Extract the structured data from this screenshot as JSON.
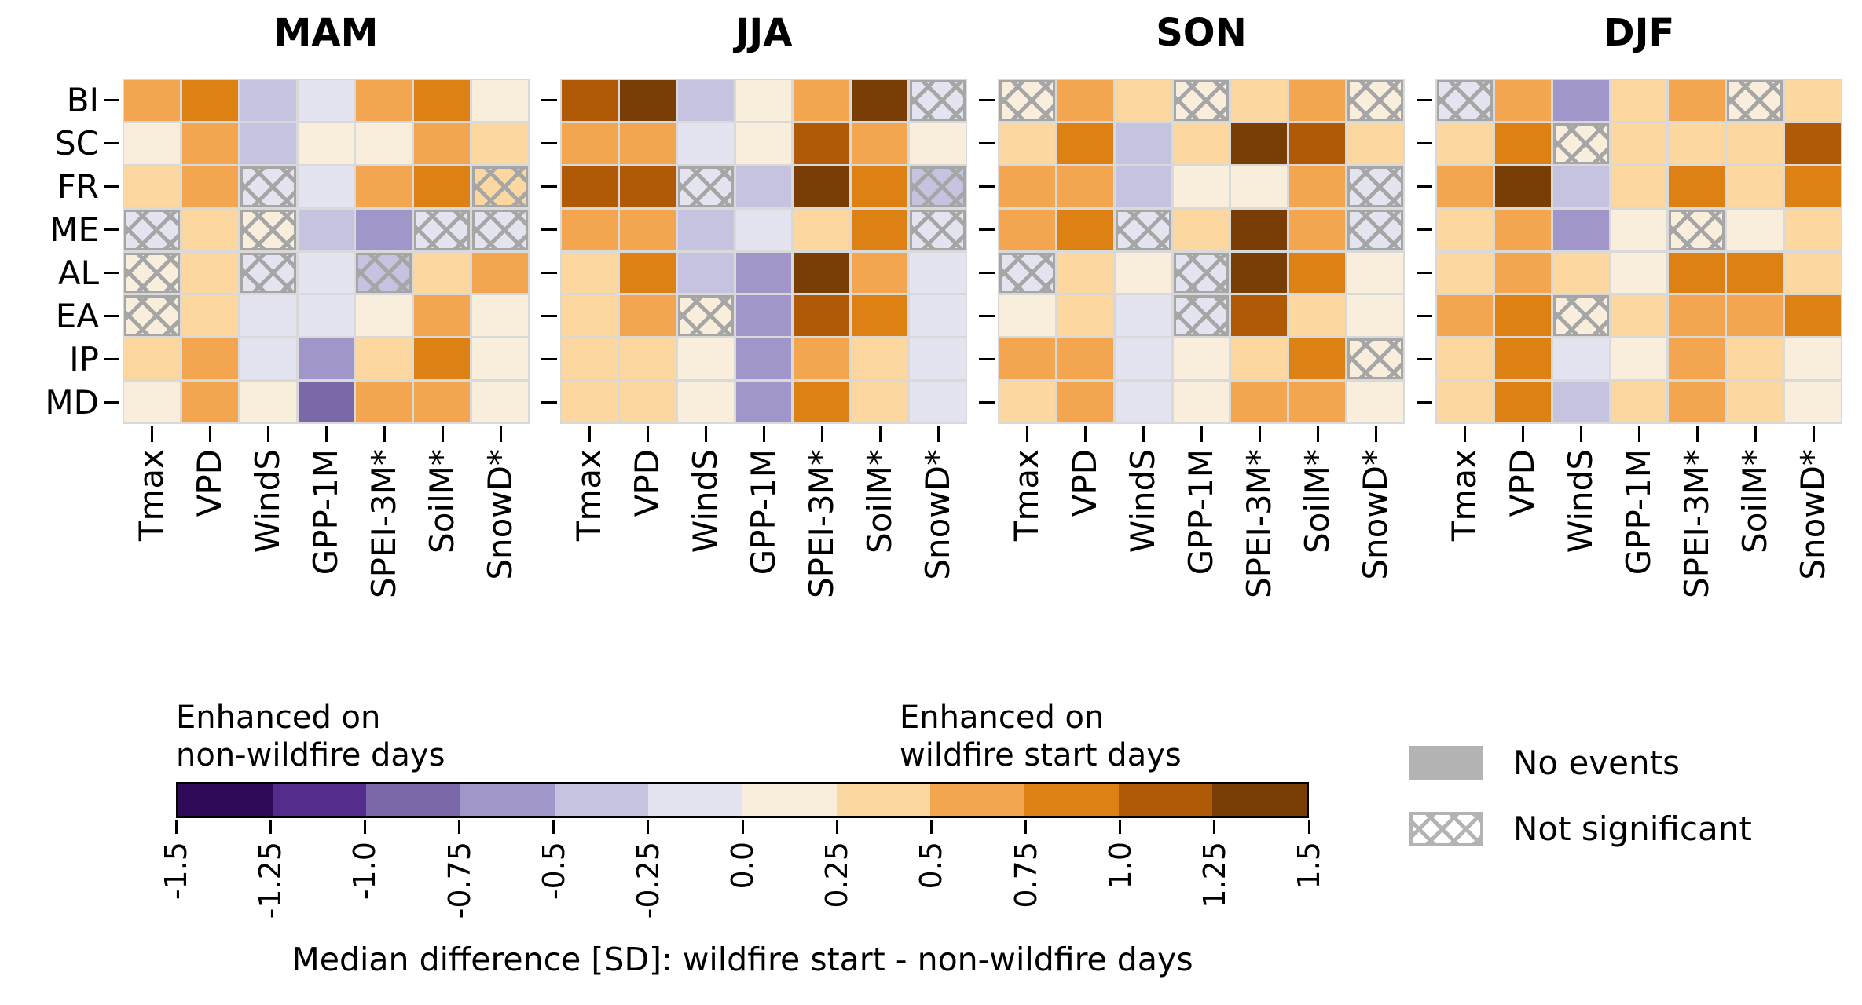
{
  "chart_data": {
    "type": "heatmap",
    "rows": [
      "BI",
      "SC",
      "FR",
      "ME",
      "AL",
      "EA",
      "IP",
      "MD"
    ],
    "columns": [
      "Tmax",
      "VPD",
      "WindS",
      "GPP-1M",
      "SPEI-3M*",
      "SoilM*",
      "SnowD*"
    ],
    "value_units": "SD (median difference, wildfire start minus non-wildfire days)",
    "panels": [
      {
        "title": "MAM",
        "values": [
          [
            0.625,
            0.875,
            -0.375,
            -0.125,
            0.625,
            0.875,
            0.125
          ],
          [
            0.125,
            0.625,
            -0.375,
            0.125,
            0.125,
            0.625,
            0.375
          ],
          [
            0.375,
            0.625,
            -0.125,
            -0.125,
            0.625,
            0.875,
            0.375
          ],
          [
            -0.125,
            0.375,
            0.125,
            -0.375,
            -0.625,
            -0.125,
            -0.125
          ],
          [
            0.125,
            0.375,
            -0.125,
            -0.125,
            -0.375,
            0.375,
            0.625
          ],
          [
            0.125,
            0.375,
            -0.125,
            -0.125,
            0.125,
            0.625,
            0.125
          ],
          [
            0.375,
            0.625,
            -0.125,
            -0.625,
            0.375,
            0.875,
            0.125
          ],
          [
            0.125,
            0.625,
            0.125,
            -0.875,
            0.625,
            0.625,
            0.125
          ]
        ],
        "not_significant": [
          [
            0,
            0,
            0,
            0,
            0,
            0,
            0
          ],
          [
            0,
            0,
            0,
            0,
            0,
            0,
            0
          ],
          [
            0,
            0,
            1,
            0,
            0,
            0,
            1
          ],
          [
            1,
            0,
            1,
            0,
            0,
            1,
            1
          ],
          [
            1,
            0,
            1,
            0,
            1,
            0,
            0
          ],
          [
            1,
            0,
            0,
            0,
            0,
            0,
            0
          ],
          [
            0,
            0,
            0,
            0,
            0,
            0,
            0
          ],
          [
            0,
            0,
            0,
            0,
            0,
            0,
            0
          ]
        ]
      },
      {
        "title": "JJA",
        "values": [
          [
            1.125,
            1.375,
            -0.375,
            0.125,
            0.625,
            1.375,
            -0.125
          ],
          [
            0.625,
            0.625,
            -0.125,
            0.125,
            1.125,
            0.625,
            0.125
          ],
          [
            1.125,
            1.125,
            -0.125,
            -0.375,
            1.375,
            0.875,
            -0.375
          ],
          [
            0.625,
            0.625,
            -0.375,
            -0.125,
            0.375,
            0.875,
            -0.125
          ],
          [
            0.375,
            0.875,
            -0.375,
            -0.625,
            1.375,
            0.625,
            -0.125
          ],
          [
            0.375,
            0.625,
            0.125,
            -0.625,
            1.125,
            0.875,
            -0.125
          ],
          [
            0.375,
            0.375,
            0.125,
            -0.625,
            0.625,
            0.375,
            -0.125
          ],
          [
            0.375,
            0.375,
            0.125,
            -0.625,
            0.875,
            0.375,
            -0.125
          ]
        ],
        "not_significant": [
          [
            0,
            0,
            0,
            0,
            0,
            0,
            1
          ],
          [
            0,
            0,
            0,
            0,
            0,
            0,
            0
          ],
          [
            0,
            0,
            1,
            0,
            0,
            0,
            1
          ],
          [
            0,
            0,
            0,
            0,
            0,
            0,
            1
          ],
          [
            0,
            0,
            0,
            0,
            0,
            0,
            0
          ],
          [
            0,
            0,
            1,
            0,
            0,
            0,
            0
          ],
          [
            0,
            0,
            0,
            0,
            0,
            0,
            0
          ],
          [
            0,
            0,
            0,
            0,
            0,
            0,
            0
          ]
        ]
      },
      {
        "title": "SON",
        "values": [
          [
            0.125,
            0.625,
            0.375,
            0.125,
            0.375,
            0.625,
            0.125
          ],
          [
            0.375,
            0.875,
            -0.375,
            0.375,
            1.375,
            1.125,
            0.375
          ],
          [
            0.625,
            0.625,
            -0.375,
            0.125,
            0.125,
            0.625,
            -0.125
          ],
          [
            0.625,
            0.875,
            -0.125,
            0.375,
            1.375,
            0.625,
            -0.125
          ],
          [
            -0.125,
            0.375,
            0.125,
            -0.125,
            1.375,
            0.875,
            0.125
          ],
          [
            0.125,
            0.375,
            -0.125,
            -0.125,
            1.125,
            0.375,
            0.125
          ],
          [
            0.625,
            0.625,
            -0.125,
            0.125,
            0.375,
            0.875,
            0.125
          ],
          [
            0.375,
            0.625,
            -0.125,
            0.125,
            0.625,
            0.625,
            0.125
          ]
        ],
        "not_significant": [
          [
            1,
            0,
            0,
            1,
            0,
            0,
            1
          ],
          [
            0,
            0,
            0,
            0,
            0,
            0,
            0
          ],
          [
            0,
            0,
            0,
            0,
            0,
            0,
            1
          ],
          [
            0,
            0,
            1,
            0,
            0,
            0,
            1
          ],
          [
            1,
            0,
            0,
            1,
            0,
            0,
            0
          ],
          [
            0,
            0,
            0,
            1,
            0,
            0,
            0
          ],
          [
            0,
            0,
            0,
            0,
            0,
            0,
            1
          ],
          [
            0,
            0,
            0,
            0,
            0,
            0,
            0
          ]
        ]
      },
      {
        "title": "DJF",
        "values": [
          [
            -0.125,
            0.625,
            -0.625,
            0.375,
            0.625,
            0.125,
            0.375
          ],
          [
            0.375,
            0.875,
            0.125,
            0.375,
            0.375,
            0.375,
            1.125
          ],
          [
            0.625,
            1.375,
            -0.375,
            0.375,
            0.875,
            0.375,
            0.875
          ],
          [
            0.375,
            0.625,
            -0.625,
            0.125,
            0.125,
            0.125,
            0.375
          ],
          [
            0.375,
            0.625,
            0.375,
            0.125,
            0.875,
            0.875,
            0.375
          ],
          [
            0.625,
            0.875,
            0.125,
            0.375,
            0.625,
            0.625,
            0.875
          ],
          [
            0.375,
            0.875,
            -0.125,
            0.125,
            0.625,
            0.375,
            0.125
          ],
          [
            0.375,
            0.875,
            -0.375,
            0.375,
            0.625,
            0.375,
            0.125
          ]
        ],
        "not_significant": [
          [
            1,
            0,
            0,
            0,
            0,
            1,
            0
          ],
          [
            0,
            0,
            1,
            0,
            0,
            0,
            0
          ],
          [
            0,
            0,
            0,
            0,
            0,
            0,
            0
          ],
          [
            0,
            0,
            0,
            0,
            1,
            0,
            0
          ],
          [
            0,
            0,
            0,
            0,
            0,
            0,
            0
          ],
          [
            0,
            0,
            1,
            0,
            0,
            0,
            0
          ],
          [
            0,
            0,
            0,
            0,
            0,
            0,
            0
          ],
          [
            0,
            0,
            0,
            0,
            0,
            0,
            0
          ]
        ]
      }
    ],
    "colorbar": {
      "bin_edges": [
        -1.5,
        -1.25,
        -1.0,
        -0.75,
        -0.5,
        -0.25,
        0.0,
        0.25,
        0.5,
        0.75,
        1.0,
        1.25,
        1.5
      ],
      "bin_colors": [
        "#2e0a59",
        "#532c8c",
        "#7a68a8",
        "#a096c9",
        "#c5c3df",
        "#e4e3f0",
        "#f9eedb",
        "#fcd7a0",
        "#f4a54f",
        "#dd8114",
        "#b05a07",
        "#783e06"
      ],
      "tick_labels": [
        "-1.5",
        "-1.25",
        "-1.0",
        "-0.75",
        "-0.5",
        "-0.25",
        "0.0",
        "0.25",
        "0.5",
        "0.75",
        "1.0",
        "1.25",
        "1.5"
      ],
      "left_label_line1": "Enhanced on",
      "left_label_line2": "non-wildfire days",
      "right_label_line1": "Enhanced on",
      "right_label_line2": "wildfire start days",
      "axis_label": "Median difference [SD]: wildfire start - non-wildfire days"
    },
    "legend": {
      "no_events_label": "No events",
      "not_significant_label": "Not significant",
      "no_events_color": "#b3b3b3",
      "hatch_color": "#a6a6a6",
      "grid_color": "#d9d9d9"
    }
  }
}
